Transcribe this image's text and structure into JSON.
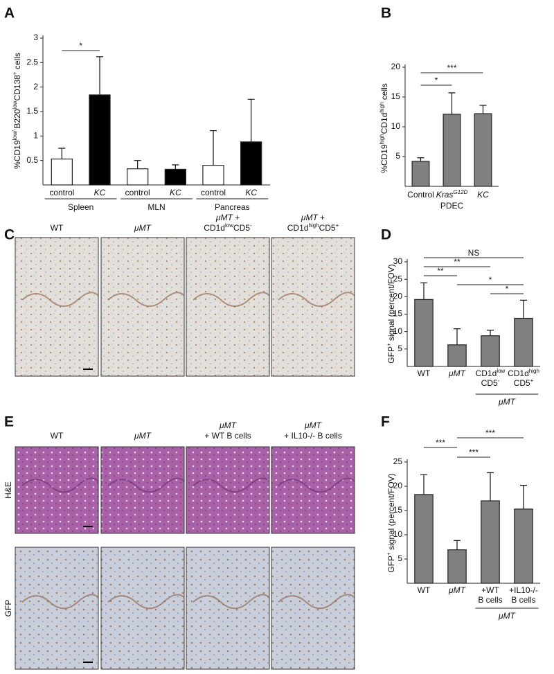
{
  "panel_labels": [
    "A",
    "B",
    "C",
    "D",
    "E",
    "F"
  ],
  "chart_data": [
    {
      "type": "bar",
      "y_label": [
        [
          "%CD19",
          {
            "text": "low/-",
            "sup": true
          },
          "B220",
          {
            "text": "low",
            "sup": true
          },
          "CD138",
          {
            "text": "+",
            "sup": true
          },
          " cells"
        ]
      ],
      "categories": [
        "control",
        [
          [
            {
              "text": "KC",
              "italic": true
            }
          ]
        ],
        "control",
        [
          [
            {
              "text": "KC",
              "italic": true
            }
          ]
        ],
        "control",
        [
          [
            {
              "text": "KC",
              "italic": true
            }
          ]
        ]
      ],
      "values": [
        0.53,
        1.84,
        0.33,
        0.32,
        0.4,
        0.88
      ],
      "errors": [
        0.22,
        0.78,
        0.17,
        0.09,
        0.71,
        0.87
      ],
      "colors": [
        "#ffffff",
        "#000000",
        "#ffffff",
        "#000000",
        "#ffffff",
        "#000000"
      ],
      "ylim": [
        0,
        3
      ],
      "yticks": [
        0.5,
        1,
        1.5,
        2,
        2.5,
        3
      ],
      "groups": [
        {
          "label": "Spleen",
          "first": 0,
          "last": 1
        },
        {
          "label": "MLN",
          "first": 2,
          "last": 3
        },
        {
          "label": "Pancreas",
          "first": 4,
          "last": 5
        }
      ],
      "group_line": true,
      "annotations": [
        {
          "label": "*",
          "first": 0,
          "last": 1
        }
      ]
    },
    {
      "type": "bar",
      "y_label": [
        [
          "%CD19",
          {
            "text": "high",
            "sup": true
          },
          "CD1d",
          {
            "text": "high",
            "sup": true
          },
          " cells"
        ]
      ],
      "categories": [
        "Control",
        [
          [
            {
              "text": "Kras",
              "italic": true
            },
            {
              "text": "G12D",
              "italic": true,
              "sup": true
            }
          ]
        ],
        [
          [
            {
              "text": "KC",
              "italic": true
            }
          ]
        ]
      ],
      "values": [
        4.2,
        12.1,
        12.2
      ],
      "errors": [
        0.6,
        3.6,
        1.4
      ],
      "color": "#808080",
      "ylim": [
        0,
        20
      ],
      "yticks": [
        5,
        10,
        15,
        20
      ],
      "groups": [
        {
          "label": "PDEC",
          "first": 0,
          "last": 2
        }
      ],
      "group_line": false,
      "annotations": [
        {
          "label": "***",
          "first": 0,
          "last": 2
        },
        {
          "label": "*",
          "first": 0,
          "last": 1
        }
      ]
    },
    {
      "type": "bar",
      "y_label": [
        [
          "GFP",
          {
            "text": "+",
            "sup": true
          },
          " signal (percent/FOV)"
        ]
      ],
      "categories": [
        "WT",
        [
          [
            {
              "text": "μMT",
              "italic": true
            }
          ]
        ],
        [
          [
            "CD1d",
            {
              "text": "low",
              "sup": true
            }
          ],
          [
            "CD5",
            {
              "text": "-",
              "sup": true
            }
          ]
        ],
        [
          [
            "CD1d",
            {
              "text": "high",
              "sup": true
            }
          ],
          [
            "CD5",
            {
              "text": "+",
              "sup": true
            }
          ]
        ]
      ],
      "values": [
        19.2,
        6.2,
        8.8,
        13.8
      ],
      "errors": [
        4.8,
        4.6,
        1.6,
        5.2
      ],
      "color": "#808080",
      "ylim": [
        0,
        30
      ],
      "yticks": [
        5,
        10,
        15,
        20,
        25,
        30
      ],
      "groups": [
        {
          "label": [
            [
              {
                "text": "μMT",
                "italic": true
              }
            ]
          ],
          "first": 2,
          "last": 3
        }
      ],
      "group_line": true,
      "annotations": [
        {
          "label": "NS",
          "first": 0,
          "last": 3
        },
        {
          "label": "**",
          "first": 0,
          "last": 2
        },
        {
          "label": "**",
          "first": 0,
          "last": 1
        },
        {
          "label": "*",
          "first": 1,
          "last": 3
        },
        {
          "label": "*",
          "first": 2,
          "last": 3
        }
      ]
    },
    {
      "type": "bar",
      "y_label": [
        [
          "GFP",
          {
            "text": "+",
            "sup": true
          },
          " signal (percent/FOV)"
        ]
      ],
      "categories": [
        "WT",
        [
          [
            {
              "text": "μMT",
              "italic": true
            }
          ]
        ],
        [
          "+WT",
          "B cells"
        ],
        [
          "+IL10-/-",
          "B cells"
        ]
      ],
      "values": [
        18.3,
        6.9,
        17.0,
        15.3
      ],
      "errors": [
        4.1,
        1.9,
        5.8,
        4.9
      ],
      "color": "#808080",
      "ylim": [
        0,
        25
      ],
      "yticks": [
        5,
        10,
        15,
        20,
        25
      ],
      "groups": [
        {
          "label": [
            [
              {
                "text": "μMT",
                "italic": true
              }
            ]
          ],
          "first": 2,
          "last": 3
        }
      ],
      "group_line": true,
      "annotations": [
        {
          "label": "***",
          "first": 1,
          "last": 3
        },
        {
          "label": "***",
          "first": 0,
          "last": 1
        },
        {
          "label": "***",
          "first": 1,
          "last": 2
        }
      ]
    }
  ],
  "image_figures": [
    {
      "titles": [
        "WT",
        [
          [
            {
              "text": "μMT",
              "italic": true
            }
          ]
        ],
        [
          [
            {
              "text": "μMT",
              "italic": true
            },
            " +"
          ],
          [
            "CD1d",
            {
              "text": "low",
              "sup": true
            },
            "CD5",
            {
              "text": "-",
              "sup": true
            }
          ]
        ],
        [
          [
            {
              "text": "μMT",
              "italic": true
            },
            " +"
          ],
          [
            "CD1d",
            {
              "text": "high",
              "sup": true
            },
            "CD5",
            {
              "text": "+",
              "sup": true
            }
          ]
        ]
      ]
    },
    {
      "titles": [
        "WT",
        [
          [
            {
              "text": "μMT",
              "italic": true
            }
          ]
        ],
        [
          [
            {
              "text": "μMT",
              "italic": true
            }
          ],
          [
            "+ WT B cells"
          ]
        ],
        [
          [
            {
              "text": "μMT",
              "italic": true
            }
          ],
          [
            "+ IL10-/- B cells"
          ]
        ]
      ],
      "row_labels": [
        "H&E",
        "GFP"
      ]
    }
  ]
}
